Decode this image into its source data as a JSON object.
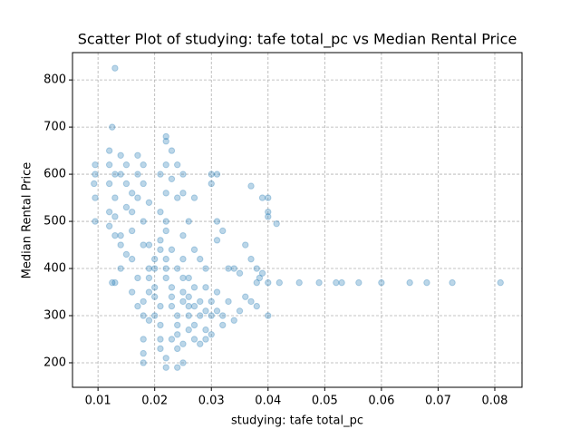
{
  "chart_data": {
    "type": "scatter",
    "title": "Scatter Plot of studying: tafe total_pc vs Median Rental Price",
    "x_label": "studying: tafe total_pc",
    "y_label": "Median Rental Price",
    "color": "#1f77b4",
    "grid": true,
    "xlim": [
      0.0055,
      0.0848
    ],
    "ylim": [
      148,
      858
    ],
    "xticks": [
      0.01,
      0.02,
      0.03,
      0.04,
      0.05,
      0.06,
      0.07,
      0.08
    ],
    "yticks": [
      200,
      300,
      400,
      500,
      600,
      700,
      800
    ],
    "x": [
      0.013,
      0.0125,
      0.0095,
      0.0095,
      0.0093,
      0.0095,
      0.0095,
      0.0125,
      0.013,
      0.038,
      0.04,
      0.042,
      0.0455,
      0.049,
      0.052,
      0.053,
      0.056,
      0.06,
      0.065,
      0.068,
      0.0725,
      0.081,
      0.037,
      0.039,
      0.04,
      0.04,
      0.0415,
      0.04,
      0.038,
      0.039,
      0.0385,
      0.036,
      0.037,
      0.034,
      0.035,
      0.036,
      0.037,
      0.038,
      0.04,
      0.035,
      0.012,
      0.012,
      0.013,
      0.012,
      0.014,
      0.014,
      0.015,
      0.015,
      0.013,
      0.012,
      0.013,
      0.012,
      0.014,
      0.014,
      0.015,
      0.016,
      0.016,
      0.016,
      0.017,
      0.017,
      0.018,
      0.018,
      0.017,
      0.018,
      0.016,
      0.017,
      0.016,
      0.018,
      0.017,
      0.018,
      0.019,
      0.018,
      0.018,
      0.018,
      0.019,
      0.019,
      0.019,
      0.02,
      0.02,
      0.02,
      0.021,
      0.021,
      0.021,
      0.022,
      0.022,
      0.021,
      0.022,
      0.022,
      0.023,
      0.022,
      0.023,
      0.022,
      0.021,
      0.022,
      0.022,
      0.021,
      0.021,
      0.022,
      0.022,
      0.022,
      0.023,
      0.023,
      0.023,
      0.024,
      0.024,
      0.024,
      0.023,
      0.024,
      0.025,
      0.024,
      0.024,
      0.024,
      0.025,
      0.025,
      0.026,
      0.025,
      0.025,
      0.025,
      0.025,
      0.025,
      0.026,
      0.026,
      0.026,
      0.027,
      0.027,
      0.027,
      0.027,
      0.028,
      0.028,
      0.028,
      0.029,
      0.029,
      0.029,
      0.03,
      0.03,
      0.03,
      0.031,
      0.031,
      0.032,
      0.032,
      0.033,
      0.034,
      0.027,
      0.027,
      0.028,
      0.029,
      0.03,
      0.03,
      0.031,
      0.031,
      0.032,
      0.031,
      0.033,
      0.029,
      0.026,
      0.025,
      0.026,
      0.024,
      0.023,
      0.02,
      0.019,
      0.02,
      0.021,
      0.019,
      0.018,
      0.015,
      0.014,
      0.013
    ],
    "values": [
      825,
      700,
      620,
      600,
      580,
      550,
      500,
      370,
      370,
      370,
      370,
      370,
      370,
      370,
      370,
      370,
      370,
      370,
      370,
      370,
      370,
      370,
      575,
      550,
      550,
      510,
      495,
      520,
      400,
      390,
      380,
      450,
      420,
      400,
      390,
      340,
      330,
      320,
      300,
      310,
      650,
      620,
      600,
      580,
      640,
      600,
      620,
      580,
      550,
      520,
      510,
      490,
      470,
      450,
      430,
      480,
      520,
      560,
      600,
      640,
      620,
      580,
      550,
      500,
      420,
      380,
      350,
      330,
      320,
      300,
      290,
      250,
      220,
      200,
      450,
      400,
      380,
      420,
      360,
      340,
      320,
      250,
      230,
      210,
      190,
      600,
      680,
      670,
      650,
      620,
      590,
      560,
      520,
      500,
      480,
      460,
      440,
      420,
      400,
      380,
      360,
      340,
      320,
      300,
      280,
      260,
      250,
      230,
      200,
      190,
      550,
      620,
      600,
      560,
      500,
      470,
      420,
      380,
      350,
      330,
      320,
      300,
      340,
      360,
      320,
      280,
      250,
      240,
      300,
      330,
      310,
      270,
      250,
      260,
      300,
      330,
      310,
      350,
      300,
      280,
      330,
      290,
      550,
      440,
      420,
      400,
      600,
      580,
      600,
      500,
      480,
      460,
      400,
      360,
      270,
      240,
      380,
      400,
      440,
      400,
      350,
      300,
      280,
      540,
      450,
      530,
      400,
      470
    ]
  }
}
